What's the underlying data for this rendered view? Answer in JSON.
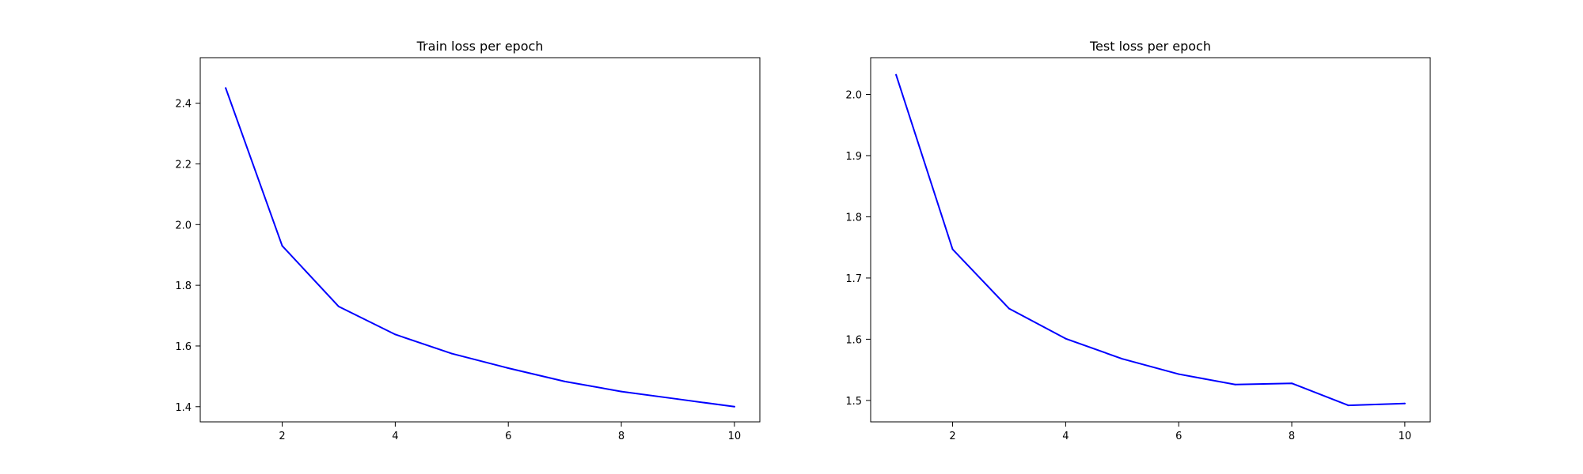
{
  "chart_data": [
    {
      "type": "line",
      "title": "Train loss per epoch",
      "xlabel": "",
      "ylabel": "",
      "x": [
        1,
        2,
        3,
        4,
        5,
        6,
        7,
        8,
        9,
        10
      ],
      "series": [
        {
          "color": "#0000ff",
          "values": [
            2.45,
            1.93,
            1.73,
            1.638,
            1.575,
            1.527,
            1.483,
            1.45,
            1.425,
            1.4
          ]
        }
      ],
      "xlim": [
        0.55,
        10.45
      ],
      "ylim": [
        1.35,
        2.55
      ],
      "xticks": [
        2,
        4,
        6,
        8,
        10
      ],
      "xtick_labels": [
        "2",
        "4",
        "6",
        "8",
        "10"
      ],
      "yticks": [
        1.4,
        1.6,
        1.8,
        2.0,
        2.2,
        2.4
      ],
      "ytick_labels": [
        "1.4",
        "1.6",
        "1.8",
        "2.0",
        "2.2",
        "2.4"
      ],
      "grid": false,
      "legend": "none"
    },
    {
      "type": "line",
      "title": "Test loss per epoch",
      "xlabel": "",
      "ylabel": "",
      "x": [
        1,
        2,
        3,
        4,
        5,
        6,
        7,
        8,
        9,
        10
      ],
      "series": [
        {
          "color": "#0000ff",
          "values": [
            2.032,
            1.747,
            1.65,
            1.601,
            1.568,
            1.543,
            1.526,
            1.528,
            1.492,
            1.495
          ]
        }
      ],
      "xlim": [
        0.55,
        10.45
      ],
      "ylim": [
        1.465,
        2.06
      ],
      "xticks": [
        2,
        4,
        6,
        8,
        10
      ],
      "xtick_labels": [
        "2",
        "4",
        "6",
        "8",
        "10"
      ],
      "yticks": [
        1.5,
        1.6,
        1.7,
        1.8,
        1.9,
        2.0
      ],
      "ytick_labels": [
        "1.5",
        "1.6",
        "1.7",
        "1.8",
        "1.9",
        "2.0"
      ],
      "grid": false,
      "legend": "none"
    }
  ]
}
